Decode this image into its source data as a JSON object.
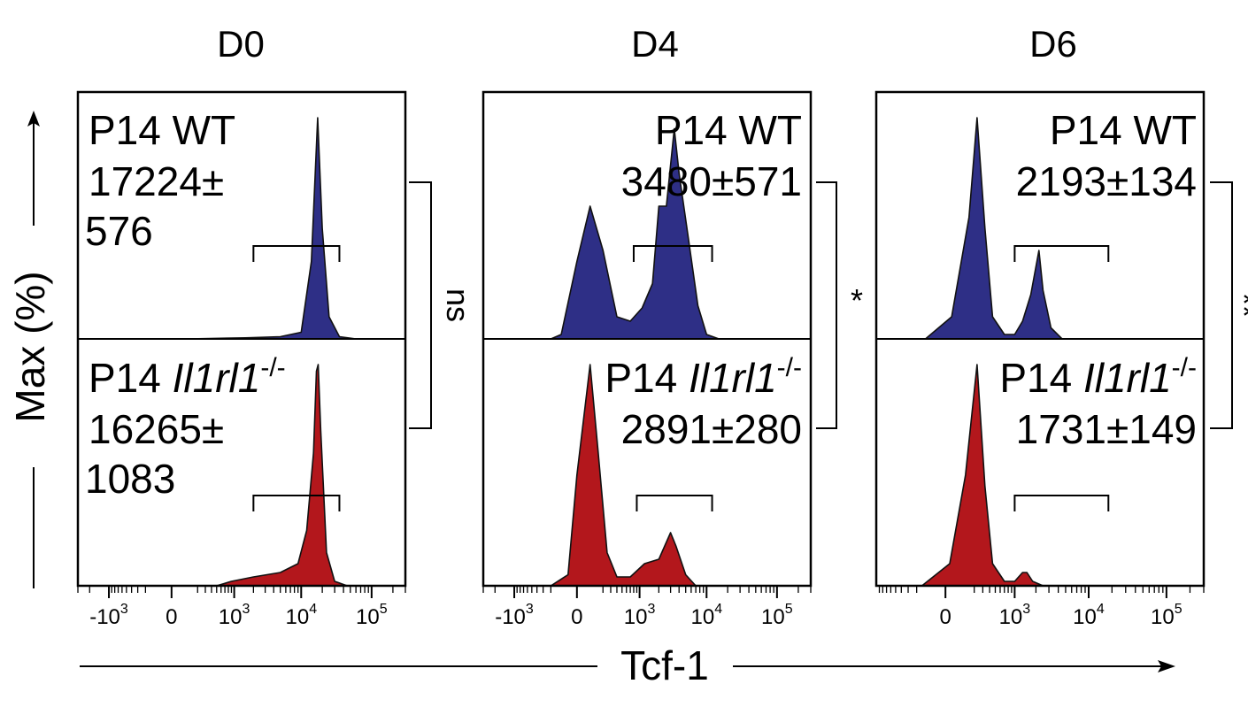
{
  "figure": {
    "x_axis_label": "Tcf-1",
    "y_axis_label": "Max (%)",
    "colors": {
      "wt": "#2e2f86",
      "ko": "#b3171c",
      "line": "#000000"
    }
  },
  "chart_data": [
    {
      "type": "area",
      "title": "D0",
      "xlabel": "Tcf-1",
      "ylabel": "Max (%)",
      "xscale": "biexponential",
      "xlim": [
        -3000,
        300000
      ],
      "x_tick_labels": [
        "-10^3",
        "0",
        "10^3",
        "10^4",
        "10^5"
      ],
      "significance": "ns",
      "series": [
        {
          "name": "P14 WT",
          "label_line1": "P14 WT",
          "label_mfi": "17224±576",
          "mfi_line1": "17224±",
          "mfi_line2": "576",
          "gate": [
            2000,
            35000
          ],
          "profile": [
            [
              -3000,
              0
            ],
            [
              100,
              0
            ],
            [
              1500,
              0.005
            ],
            [
              5000,
              0.01
            ],
            [
              10000,
              0.03
            ],
            [
              14000,
              0.35
            ],
            [
              17200,
              1.0
            ],
            [
              20000,
              0.5
            ],
            [
              25000,
              0.1
            ],
            [
              35000,
              0.01
            ],
            [
              60000,
              0
            ]
          ]
        },
        {
          "name": "P14 Il1rl1-/-",
          "label_plain": "P14 ",
          "label_italic": "Il1rl1",
          "label_sup": "-/-",
          "label_mfi": "16265±1083",
          "mfi_line1": "16265±",
          "mfi_line2": "1083",
          "gate": [
            2000,
            35000
          ],
          "profile": [
            [
              -3000,
              0
            ],
            [
              500,
              0
            ],
            [
              900,
              0.02
            ],
            [
              2000,
              0.04
            ],
            [
              5000,
              0.06
            ],
            [
              9000,
              0.1
            ],
            [
              12000,
              0.25
            ],
            [
              15000,
              0.6
            ],
            [
              16500,
              0.97
            ],
            [
              17500,
              1.0
            ],
            [
              19000,
              0.7
            ],
            [
              23000,
              0.15
            ],
            [
              30000,
              0.02
            ],
            [
              45000,
              0
            ]
          ]
        }
      ]
    },
    {
      "type": "area",
      "title": "D4",
      "xlabel": "Tcf-1",
      "ylabel": "Max (%)",
      "xscale": "biexponential",
      "xlim": [
        -3000,
        300000
      ],
      "x_tick_labels": [
        "-10^3",
        "0",
        "10^3",
        "10^4",
        "10^5"
      ],
      "significance": "*",
      "series": [
        {
          "name": "P14 WT",
          "label_line1": "P14 WT",
          "label_mfi": "3480±571",
          "gate": [
            800,
            12000
          ],
          "profile": [
            [
              -3000,
              0
            ],
            [
              -200,
              0
            ],
            [
              -100,
              0.02
            ],
            [
              0,
              0.35
            ],
            [
              80,
              0.6
            ],
            [
              200,
              0.4
            ],
            [
              400,
              0.1
            ],
            [
              700,
              0.08
            ],
            [
              1100,
              0.14
            ],
            [
              1600,
              0.25
            ],
            [
              2000,
              0.6
            ],
            [
              2600,
              0.6
            ],
            [
              3400,
              0.95
            ],
            [
              4000,
              0.75
            ],
            [
              5500,
              0.45
            ],
            [
              7500,
              0.15
            ],
            [
              10000,
              0.02
            ],
            [
              15000,
              0
            ]
          ]
        },
        {
          "name": "P14 Il1rl1-/-",
          "label_plain": "P14 ",
          "label_italic": "Il1rl1",
          "label_sup": "-/-",
          "label_mfi": "2891±280",
          "gate": [
            900,
            12000
          ],
          "profile": [
            [
              -3000,
              0
            ],
            [
              -200,
              0
            ],
            [
              -50,
              0.05
            ],
            [
              0,
              0.5
            ],
            [
              80,
              1.0
            ],
            [
              150,
              0.6
            ],
            [
              250,
              0.15
            ],
            [
              400,
              0.04
            ],
            [
              700,
              0.04
            ],
            [
              1200,
              0.1
            ],
            [
              2000,
              0.12
            ],
            [
              3000,
              0.24
            ],
            [
              3600,
              0.18
            ],
            [
              5000,
              0.05
            ],
            [
              7000,
              0
            ],
            [
              15000,
              0
            ]
          ]
        }
      ]
    },
    {
      "type": "area",
      "title": "D6",
      "xlabel": "Tcf-1",
      "ylabel": "Max (%)",
      "xscale": "biexponential",
      "xlim": [
        -1000,
        300000
      ],
      "x_tick_labels": [
        "0",
        "10^3",
        "10^4",
        "10^5"
      ],
      "significance": "**",
      "series": [
        {
          "name": "P14 WT",
          "label_line1": "P14 WT",
          "label_mfi": "2193±134",
          "gate": [
            1000,
            18000
          ],
          "profile": [
            [
              -1000,
              0
            ],
            [
              -120,
              0
            ],
            [
              30,
              0.1
            ],
            [
              150,
              0.55
            ],
            [
              230,
              1.0
            ],
            [
              330,
              0.5
            ],
            [
              450,
              0.1
            ],
            [
              700,
              0.02
            ],
            [
              1000,
              0.02
            ],
            [
              1300,
              0.08
            ],
            [
              1700,
              0.2
            ],
            [
              2200,
              0.4
            ],
            [
              2500,
              0.22
            ],
            [
              3200,
              0.05
            ],
            [
              4500,
              0
            ],
            [
              10000,
              0
            ]
          ]
        },
        {
          "name": "P14 Il1rl1-/-",
          "label_plain": "P14 ",
          "label_italic": "Il1rl1",
          "label_sup": "-/-",
          "label_mfi": "1731±149",
          "gate": [
            1000,
            18000
          ],
          "profile": [
            [
              -1000,
              0
            ],
            [
              -150,
              0
            ],
            [
              20,
              0.1
            ],
            [
              120,
              0.5
            ],
            [
              230,
              1.0
            ],
            [
              330,
              0.45
            ],
            [
              450,
              0.1
            ],
            [
              700,
              0.02
            ],
            [
              1000,
              0.02
            ],
            [
              1300,
              0.06
            ],
            [
              1500,
              0.06
            ],
            [
              1800,
              0.02
            ],
            [
              2500,
              0
            ],
            [
              10000,
              0
            ]
          ]
        }
      ]
    }
  ]
}
